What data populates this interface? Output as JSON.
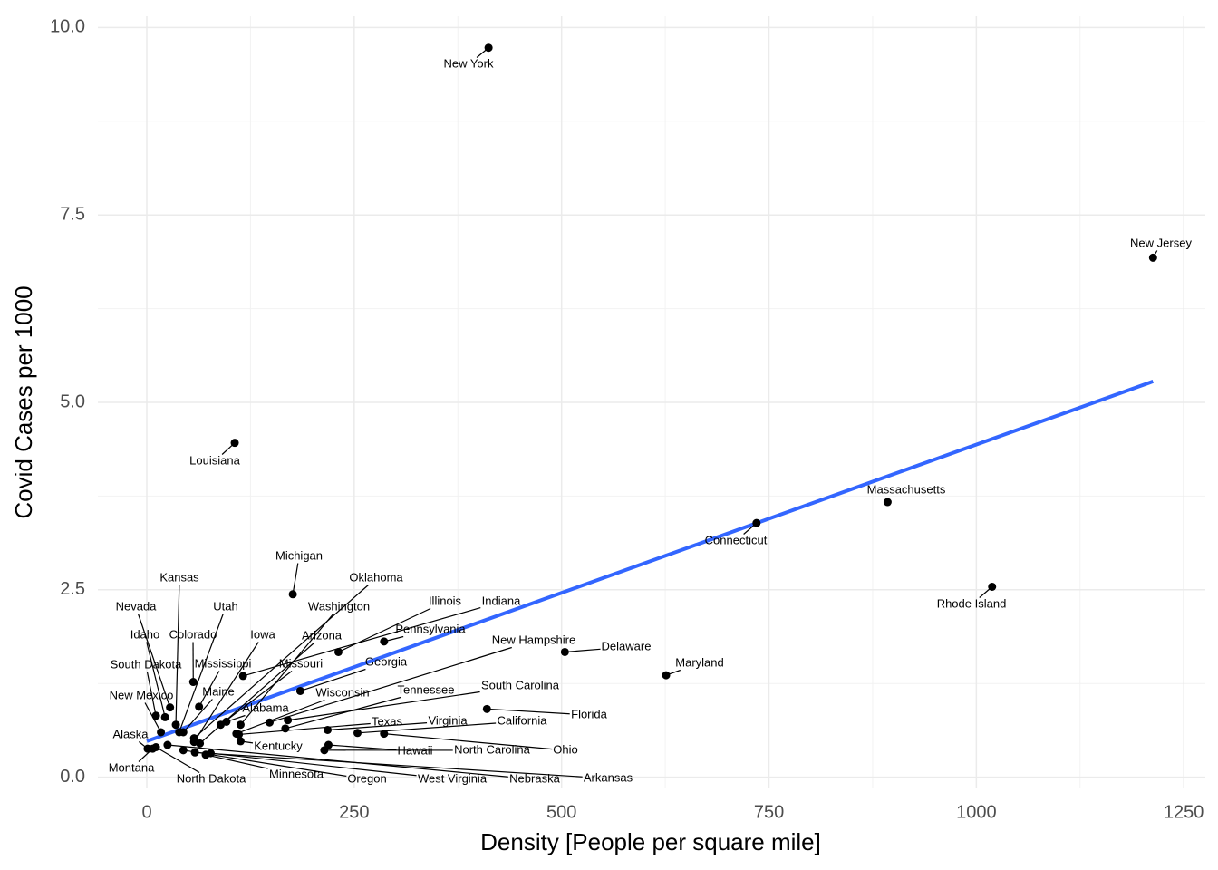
{
  "chart_data": {
    "type": "scatter",
    "x_label": "Density [People per square mile]",
    "y_label": "Covid Cases per 1000",
    "labels": [
      "New York",
      "New Jersey",
      "Louisiana",
      "Massachusetts",
      "Connecticut",
      "Rhode Island",
      "Michigan",
      "Oklahoma",
      "Kansas",
      "Nevada",
      "Utah",
      "Washington",
      "Illinois",
      "Indiana",
      "Idaho",
      "Colorado",
      "Iowa",
      "Arizona",
      "Pennsylvania",
      "New Hampshire",
      "Delaware",
      "Maryland",
      "South Dakota",
      "Mississippi",
      "Missouri",
      "Georgia",
      "Maine",
      "Wisconsin",
      "Tennessee",
      "South Carolina",
      "New Mexico",
      "Alabama",
      "Florida",
      "Alaska",
      "Texas",
      "Virginia",
      "California",
      "Kentucky",
      "Hawaii",
      "North Carolina",
      "Ohio",
      "Montana",
      "North Dakota",
      "Minnesota",
      "Oregon",
      "West Virginia",
      "Nebraska",
      "Arkansas"
    ],
    "x": [
      412,
      1213,
      106,
      893,
      735,
      1019,
      176,
      57,
      35,
      28,
      39,
      113,
      231,
      116,
      22,
      56,
      57,
      64,
      286,
      148,
      504,
      626,
      11,
      63,
      89,
      185,
      44,
      108,
      167,
      170,
      17,
      96,
      410,
      1,
      111,
      218,
      254,
      113,
      219,
      214,
      286,
      7,
      11,
      71,
      44,
      77,
      25,
      58
    ],
    "values": [
      9.73,
      6.93,
      4.46,
      3.67,
      3.39,
      2.54,
      2.44,
      0.52,
      0.7,
      0.93,
      0.6,
      0.7,
      1.67,
      1.35,
      0.8,
      1.27,
      0.47,
      0.45,
      1.81,
      0.73,
      1.67,
      1.36,
      0.82,
      0.94,
      0.7,
      1.15,
      0.6,
      0.58,
      0.65,
      0.76,
      0.6,
      0.74,
      0.91,
      0.38,
      0.57,
      0.63,
      0.59,
      0.48,
      0.43,
      0.36,
      0.58,
      0.38,
      0.4,
      0.3,
      0.36,
      0.32,
      0.43,
      0.33
    ],
    "color": "#000000",
    "trend_line": {
      "x": [
        0,
        1213
      ],
      "values": [
        0.48,
        5.28
      ],
      "color": "#3366ff"
    },
    "xlim": [
      -59,
      1276
    ],
    "ylim": [
      -0.15,
      10.15
    ],
    "xticks": [
      0,
      250,
      500,
      750,
      1000,
      1250
    ],
    "yticks": [
      {
        "value": 0,
        "label": "0.0"
      },
      2.5,
      {
        "value": 5,
        "label": "5.0"
      },
      7.5,
      {
        "value": 10,
        "label": "10.0"
      }
    ],
    "grid": true
  }
}
